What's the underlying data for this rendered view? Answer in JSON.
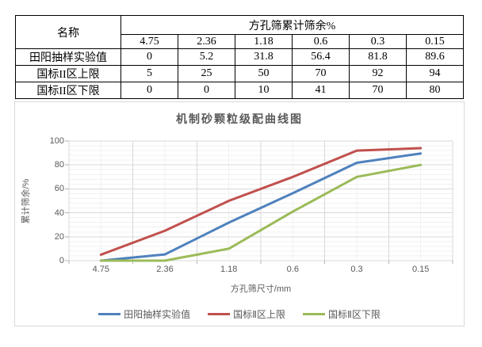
{
  "table": {
    "name_header": "名称",
    "span_header": "方孔筛累计筛余%",
    "sizes": [
      "4.75",
      "2.36",
      "1.18",
      "0.6",
      "0.3",
      "0.15"
    ],
    "rows": [
      {
        "label": "田阳抽样实验值",
        "values": [
          "0",
          "5.2",
          "31.8",
          "56.4",
          "81.8",
          "89.6"
        ]
      },
      {
        "label": "国标II区上限",
        "values": [
          "5",
          "25",
          "50",
          "70",
          "92",
          "94"
        ]
      },
      {
        "label": "国标II区下限",
        "values": [
          "0",
          "0",
          "10",
          "41",
          "70",
          "80"
        ]
      }
    ]
  },
  "chart_data": {
    "type": "line",
    "title": "机制砂颗粒级配曲线图",
    "xlabel": "方孔筛尺寸/mm",
    "ylabel": "累计筛余/%",
    "categories": [
      "4.75",
      "2.36",
      "1.18",
      "0.6",
      "0.3",
      "0.15"
    ],
    "series": [
      {
        "name": "田阳抽样实验值",
        "color": "#4f81bd",
        "values": [
          0,
          5.2,
          31.8,
          56.4,
          81.8,
          89.6
        ]
      },
      {
        "name": "国标Ⅱ区上限",
        "color": "#c0504d",
        "values": [
          5,
          25,
          50,
          70,
          92,
          94
        ]
      },
      {
        "name": "国标Ⅱ区下限",
        "color": "#9bbb59",
        "values": [
          0,
          0,
          10,
          41,
          70,
          80
        ]
      }
    ],
    "ylim": [
      0,
      100
    ],
    "ytick_interval": 20,
    "minor_unit": 4,
    "yticks": [
      "0",
      "20",
      "40",
      "60",
      "80",
      "100"
    ],
    "grid": "major+minor",
    "legend_position": "bottom",
    "colors": {
      "major_grid": "#d8d8d8",
      "minor_grid": "#f1f1f1",
      "axis_tick": "#b3b3b3",
      "text": "#595959"
    }
  }
}
